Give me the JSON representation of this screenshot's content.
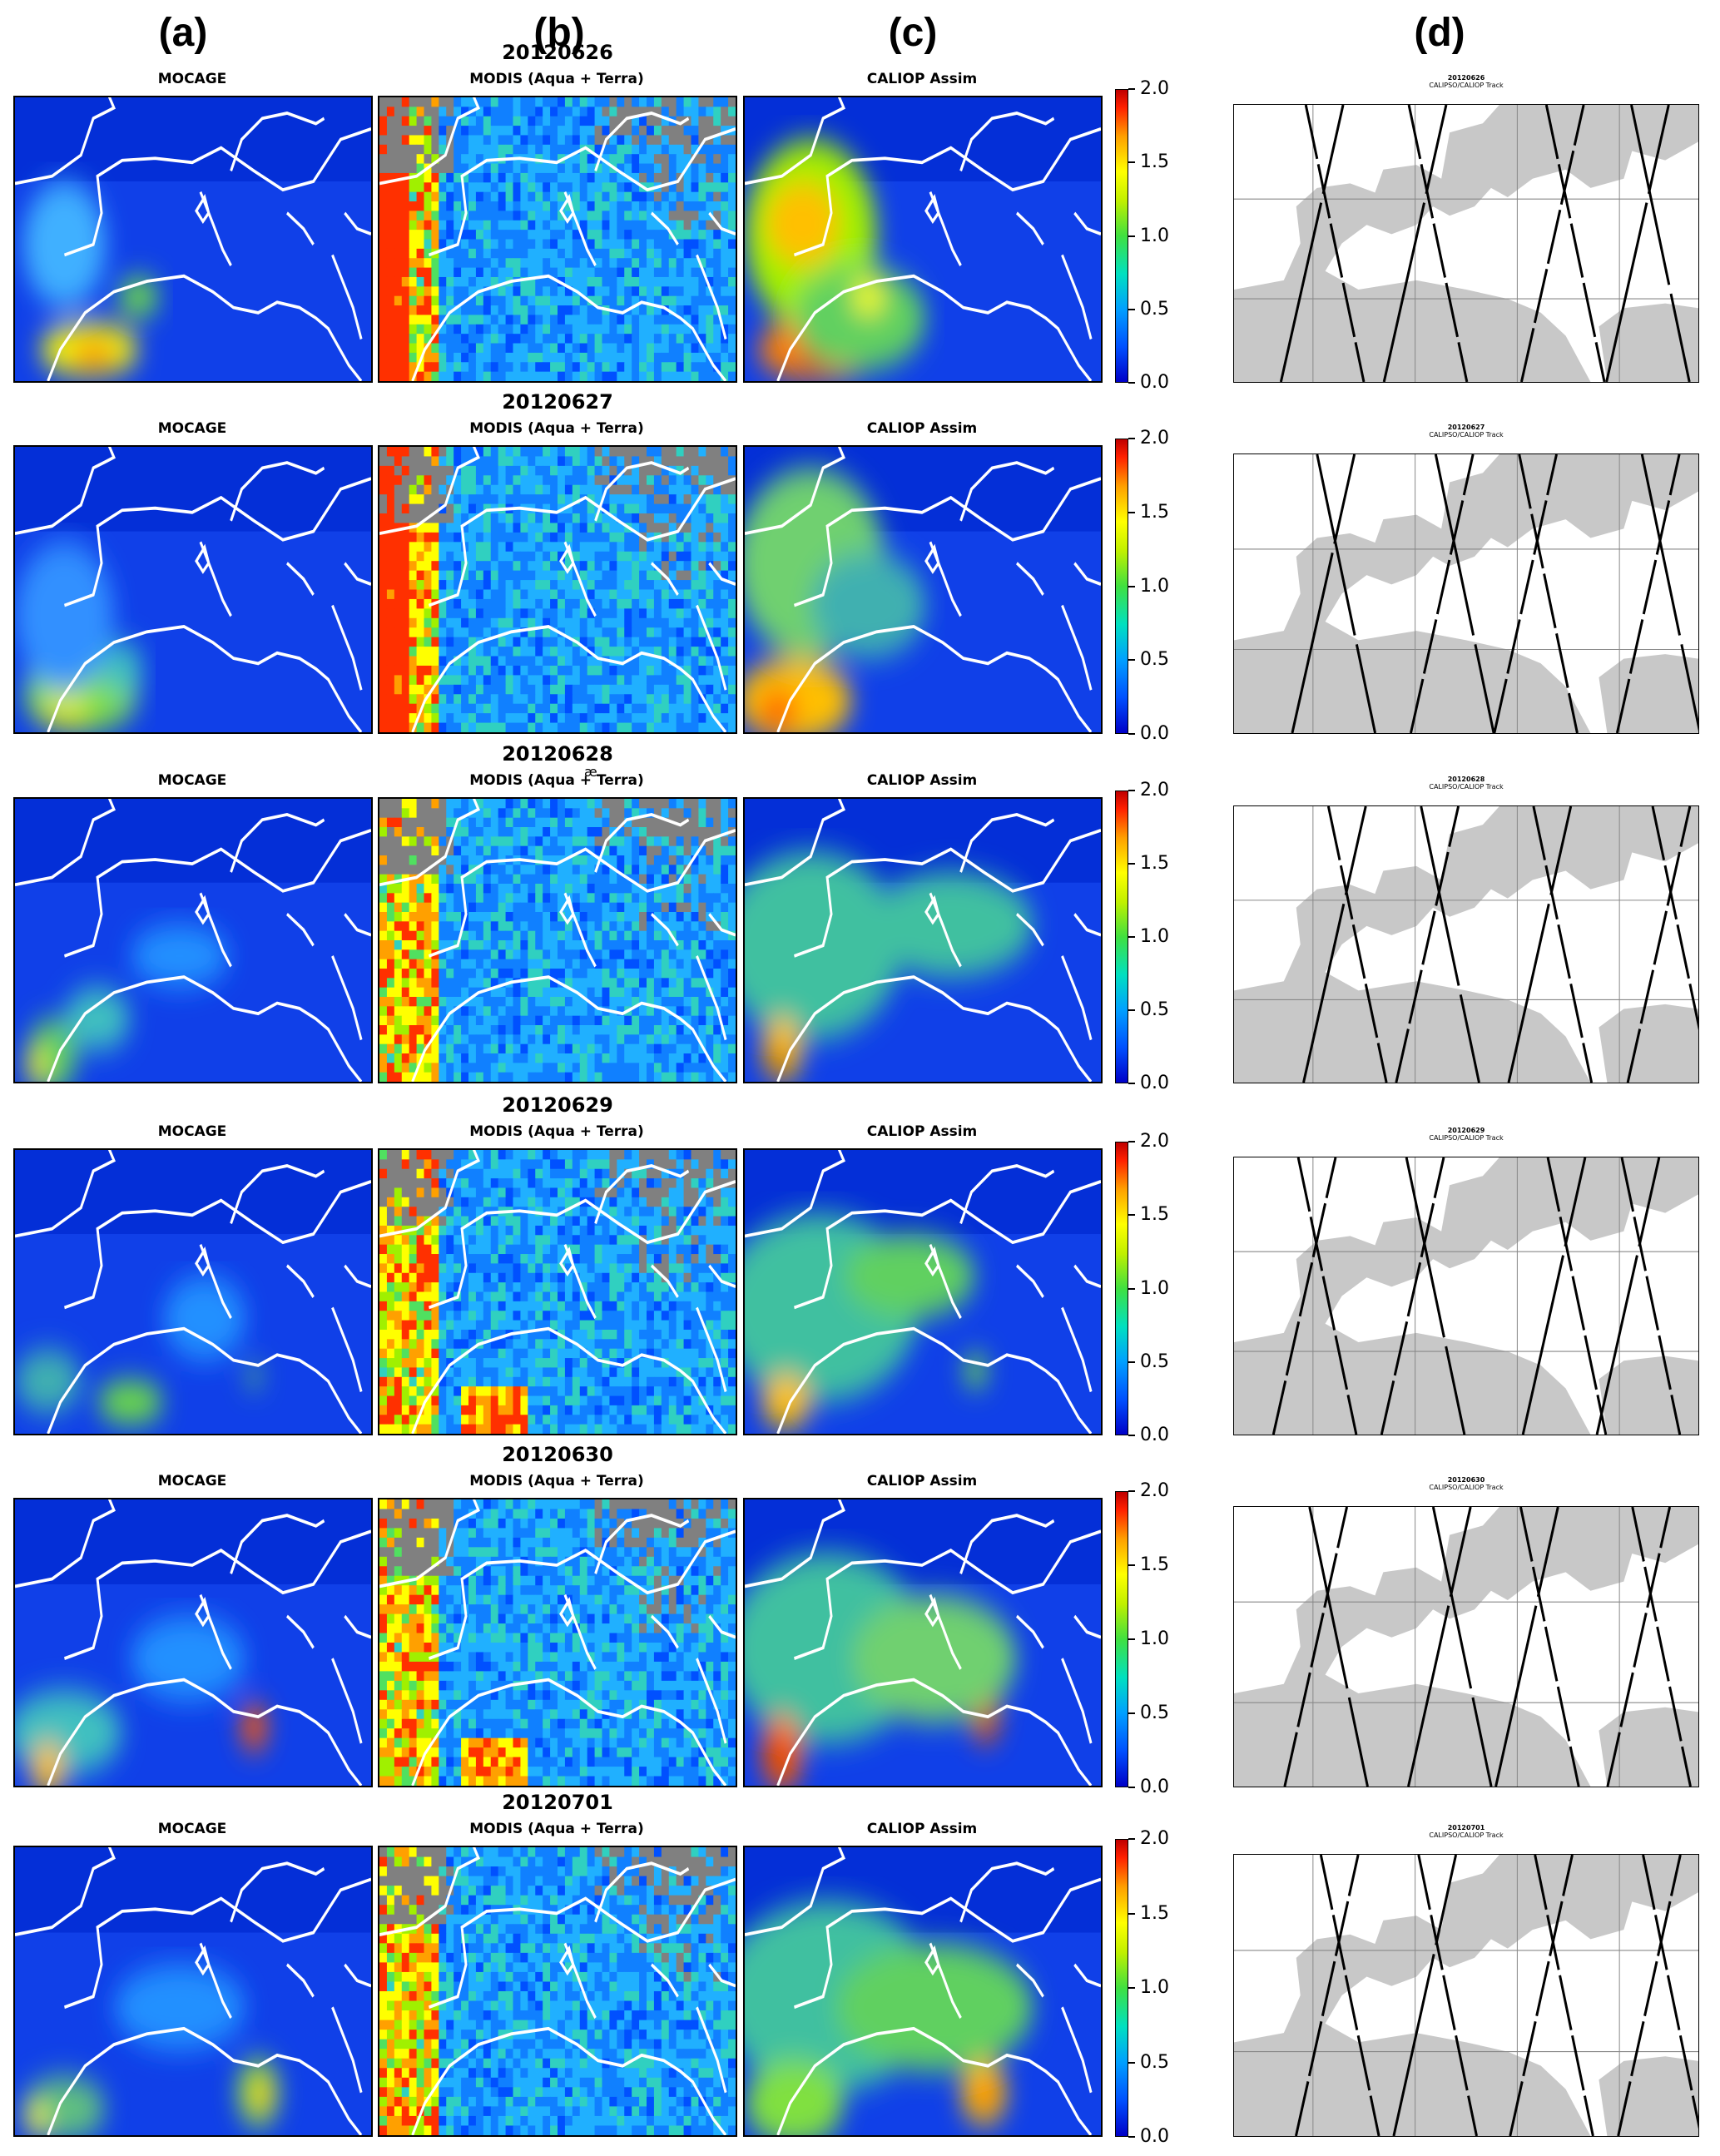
{
  "column_labels": [
    "(a)",
    "(b)",
    "(c)",
    "(d)"
  ],
  "panel_titles": {
    "mocage": "MOCAGE",
    "modis": "MODIS (Aqua + Terra)",
    "caliop": "CALIOP Assim"
  },
  "stray_text": "æ",
  "colorbar": {
    "ticks": [
      "2.0",
      "1.5",
      "1.0",
      "0.5",
      "0.0"
    ],
    "min": 0.0,
    "max": 2.0
  },
  "track_subtitle": "CALIPSO/CALIOP Track",
  "colors": {
    "land_track": "#c8c8c8",
    "missing": "#808080",
    "low": "#0000c8",
    "high": "#c00000"
  },
  "rows": [
    {
      "date": "20120626"
    },
    {
      "date": "20120627"
    },
    {
      "date": "20120628"
    },
    {
      "date": "20120629"
    },
    {
      "date": "20120630"
    },
    {
      "date": "20120701"
    }
  ]
}
